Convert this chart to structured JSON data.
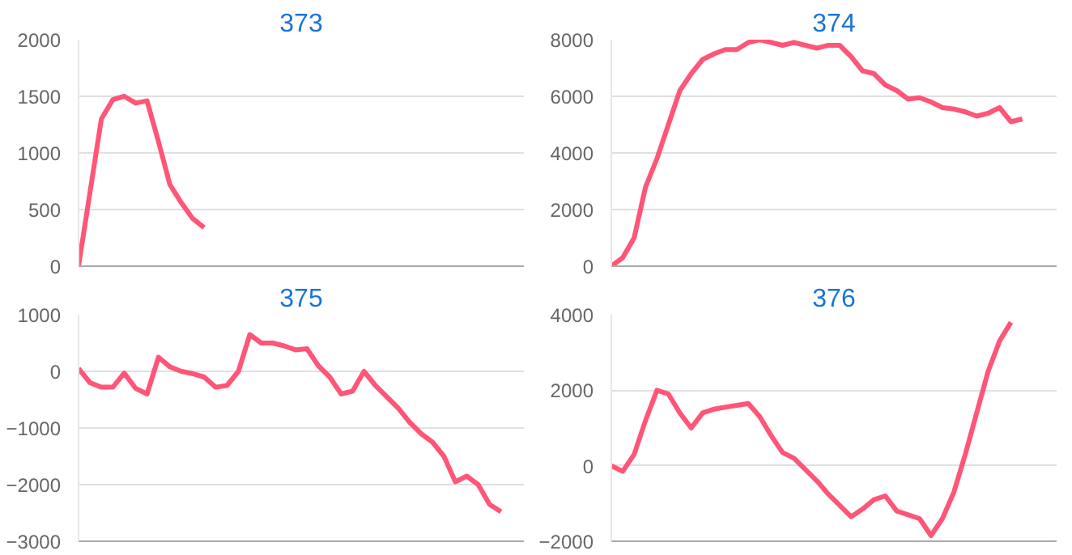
{
  "chart_data": [
    {
      "type": "line",
      "title": "373",
      "categories": [
        null,
        null,
        null,
        null,
        null,
        null,
        null,
        null,
        null,
        null,
        null,
        null,
        null,
        null,
        null,
        null,
        null,
        null,
        null,
        null,
        null,
        null,
        null,
        null,
        null,
        null,
        null,
        null,
        null,
        null,
        null,
        null,
        null,
        null,
        null,
        null,
        null,
        null,
        null,
        null
      ],
      "series": [
        {
          "color": "#ff5577",
          "values": [
            0,
            650,
            1300,
            1470,
            1500,
            1440,
            1460,
            1100,
            720,
            560,
            420,
            340,
            null,
            null,
            null,
            null,
            null,
            null,
            null,
            null,
            null,
            null,
            null,
            null,
            null,
            null,
            null,
            null,
            null,
            null,
            null,
            null,
            null,
            null,
            null,
            null,
            null,
            null,
            null,
            null
          ]
        }
      ],
      "ylim": [
        0,
        2000
      ],
      "yticks": [
        0,
        500,
        1000,
        1500,
        2000
      ],
      "grid": "y",
      "tick_labels": "y",
      "marker": "none",
      "line_style": "solid"
    },
    {
      "type": "line",
      "title": "374",
      "categories": [
        null,
        null,
        null,
        null,
        null,
        null,
        null,
        null,
        null,
        null,
        null,
        null,
        null,
        null,
        null,
        null,
        null,
        null,
        null,
        null,
        null,
        null,
        null,
        null,
        null,
        null,
        null,
        null,
        null,
        null,
        null,
        null,
        null,
        null,
        null,
        null,
        null,
        null,
        null,
        null
      ],
      "series": [
        {
          "color": "#ff5577",
          "values": [
            0,
            300,
            1000,
            2800,
            3800,
            5000,
            6200,
            6800,
            7300,
            7500,
            7650,
            7650,
            7900,
            8000,
            7900,
            7800,
            7900,
            7800,
            7700,
            7800,
            7800,
            7400,
            6900,
            6800,
            6400,
            6200,
            5900,
            5950,
            5800,
            5600,
            5550,
            5450,
            5300,
            5400,
            5600,
            5100,
            5200,
            null,
            null,
            null
          ]
        }
      ],
      "ylim": [
        0,
        8000
      ],
      "yticks": [
        0,
        2000,
        4000,
        6000,
        8000
      ],
      "grid": "y",
      "tick_labels": "y",
      "marker": "none",
      "line_style": "solid"
    },
    {
      "type": "line",
      "title": "375",
      "categories": [
        null,
        null,
        null,
        null,
        null,
        null,
        null,
        null,
        null,
        null,
        null,
        null,
        null,
        null,
        null,
        null,
        null,
        null,
        null,
        null,
        null,
        null,
        null,
        null,
        null,
        null,
        null,
        null,
        null,
        null,
        null,
        null,
        null,
        null,
        null,
        null,
        null,
        null,
        null,
        null
      ],
      "series": [
        {
          "color": "#ff5577",
          "values": [
            50,
            -200,
            -280,
            -280,
            -30,
            -300,
            -400,
            250,
            80,
            0,
            -40,
            -100,
            -280,
            -250,
            0,
            650,
            500,
            500,
            450,
            380,
            400,
            100,
            -100,
            -400,
            -350,
            0,
            -250,
            -450,
            -650,
            -900,
            -1100,
            -1250,
            -1500,
            -1950,
            -1850,
            -2000,
            -2350,
            -2480,
            null,
            null
          ]
        }
      ],
      "ylim": [
        -3000,
        1000
      ],
      "yticks": [
        -3000,
        -2000,
        -1000,
        0,
        1000
      ],
      "grid": "y",
      "tick_labels": "y",
      "marker": "none",
      "line_style": "solid"
    },
    {
      "type": "line",
      "title": "376",
      "categories": [
        null,
        null,
        null,
        null,
        null,
        null,
        null,
        null,
        null,
        null,
        null,
        null,
        null,
        null,
        null,
        null,
        null,
        null,
        null,
        null,
        null,
        null,
        null,
        null,
        null,
        null,
        null,
        null,
        null,
        null,
        null,
        null,
        null,
        null,
        null,
        null,
        null,
        null,
        null,
        null
      ],
      "series": [
        {
          "color": "#ff5577",
          "values": [
            0,
            -150,
            300,
            1200,
            2000,
            1900,
            1400,
            1000,
            1400,
            1500,
            1550,
            1600,
            1650,
            1300,
            800,
            350,
            200,
            -100,
            -400,
            -750,
            -1050,
            -1350,
            -1150,
            -900,
            -800,
            -1200,
            -1300,
            -1400,
            -1850,
            -1400,
            -700,
            300,
            1400,
            2500,
            3300,
            3800,
            null,
            null,
            null,
            null
          ]
        }
      ],
      "ylim": [
        -2000,
        4000
      ],
      "yticks": [
        -2000,
        0,
        2000,
        4000
      ],
      "grid": "y",
      "tick_labels": "y",
      "marker": "none",
      "line_style": "solid"
    }
  ]
}
